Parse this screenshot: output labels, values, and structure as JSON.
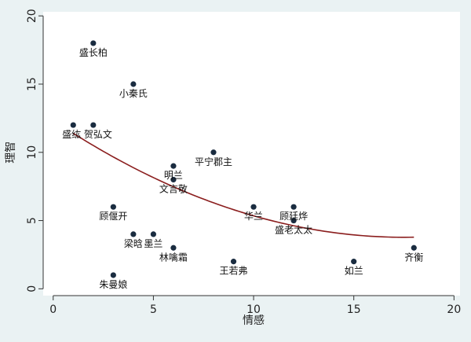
{
  "chart_data": {
    "type": "scatter",
    "title": "",
    "xlabel": "情感",
    "ylabel": "理智",
    "xlim": [
      -0.5,
      20.3
    ],
    "ylim": [
      -0.5,
      20.3
    ],
    "xticks": [
      0,
      5,
      10,
      15,
      20
    ],
    "yticks": [
      0,
      5,
      10,
      15,
      20
    ],
    "grid": false,
    "marker_color": "#1a2c40",
    "fit_color": "#8b1e1e",
    "background_color": "#eaf2f3",
    "points": [
      {
        "label": "盛长柏",
        "x": 2,
        "y": 18
      },
      {
        "label": "小秦氏",
        "x": 4,
        "y": 15
      },
      {
        "label": "盛纮",
        "x": 1,
        "y": 12
      },
      {
        "label": "贺弘文",
        "x": 2,
        "y": 12
      },
      {
        "label": "平宁郡主",
        "x": 8,
        "y": 10
      },
      {
        "label": "明兰",
        "x": 6,
        "y": 9
      },
      {
        "label": "文言敬",
        "x": 6,
        "y": 8
      },
      {
        "label": "顾偃开",
        "x": 3,
        "y": 6
      },
      {
        "label": "华兰",
        "x": 10,
        "y": 6
      },
      {
        "label": "顾廷烨",
        "x": 12,
        "y": 6
      },
      {
        "label": "盛老太太",
        "x": 12,
        "y": 5
      },
      {
        "label": "梁晗",
        "x": 4,
        "y": 4
      },
      {
        "label": "墨兰",
        "x": 5,
        "y": 4
      },
      {
        "label": "林噙霜",
        "x": 6,
        "y": 3
      },
      {
        "label": "王若弗",
        "x": 9,
        "y": 2
      },
      {
        "label": "如兰",
        "x": 15,
        "y": 2
      },
      {
        "label": "齐衡",
        "x": 18,
        "y": 3
      },
      {
        "label": "朱曼娘",
        "x": 3,
        "y": 1
      }
    ],
    "fit": {
      "type": "quadratic",
      "x": [
        1,
        18
      ],
      "coefficients": [
        12.35,
        -0.98,
        0.028
      ]
    }
  }
}
